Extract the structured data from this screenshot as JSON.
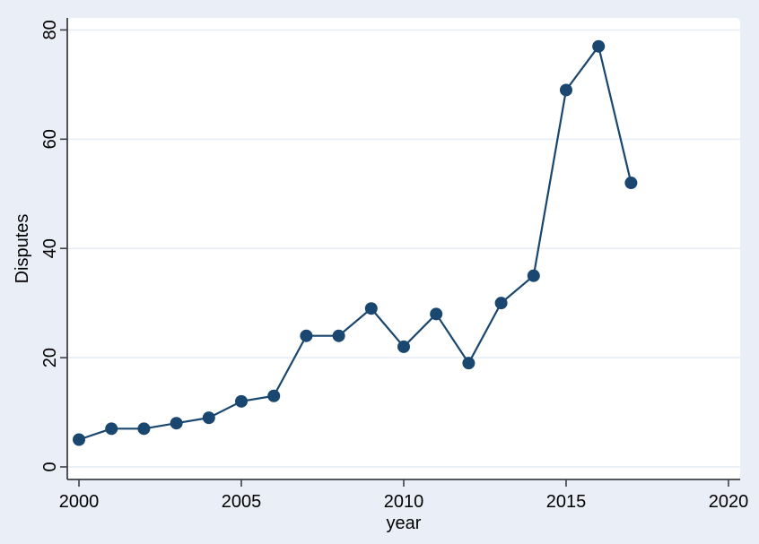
{
  "chart_data": {
    "type": "line",
    "title": "",
    "xlabel": "year",
    "ylabel": "Disputes",
    "series": [
      {
        "name": "Disputes",
        "x": [
          2000,
          2001,
          2002,
          2003,
          2004,
          2005,
          2006,
          2007,
          2008,
          2009,
          2010,
          2011,
          2012,
          2013,
          2014,
          2015,
          2016,
          2017
        ],
        "values": [
          5,
          7,
          7,
          8,
          9,
          12,
          13,
          24,
          24,
          29,
          22,
          28,
          19,
          30,
          35,
          69,
          77,
          52
        ]
      }
    ],
    "xticks": [
      2000,
      2005,
      2010,
      2015,
      2020
    ],
    "yticks": [
      0,
      20,
      40,
      60,
      80
    ],
    "xlim": [
      1999.64,
      2020.36
    ],
    "ylim": [
      -2.3,
      82.2
    ],
    "grid": "horizontal-only",
    "legend_position": "none",
    "marker": "filled-circle"
  },
  "colors": {
    "figure_background": "#eaeef6",
    "plot_background": "#ffffff",
    "gridline": "#e7edf5",
    "axis": "#3e4148",
    "text": "#000000",
    "series_line": "#1a476f",
    "marker_fill": "#1a476f"
  }
}
